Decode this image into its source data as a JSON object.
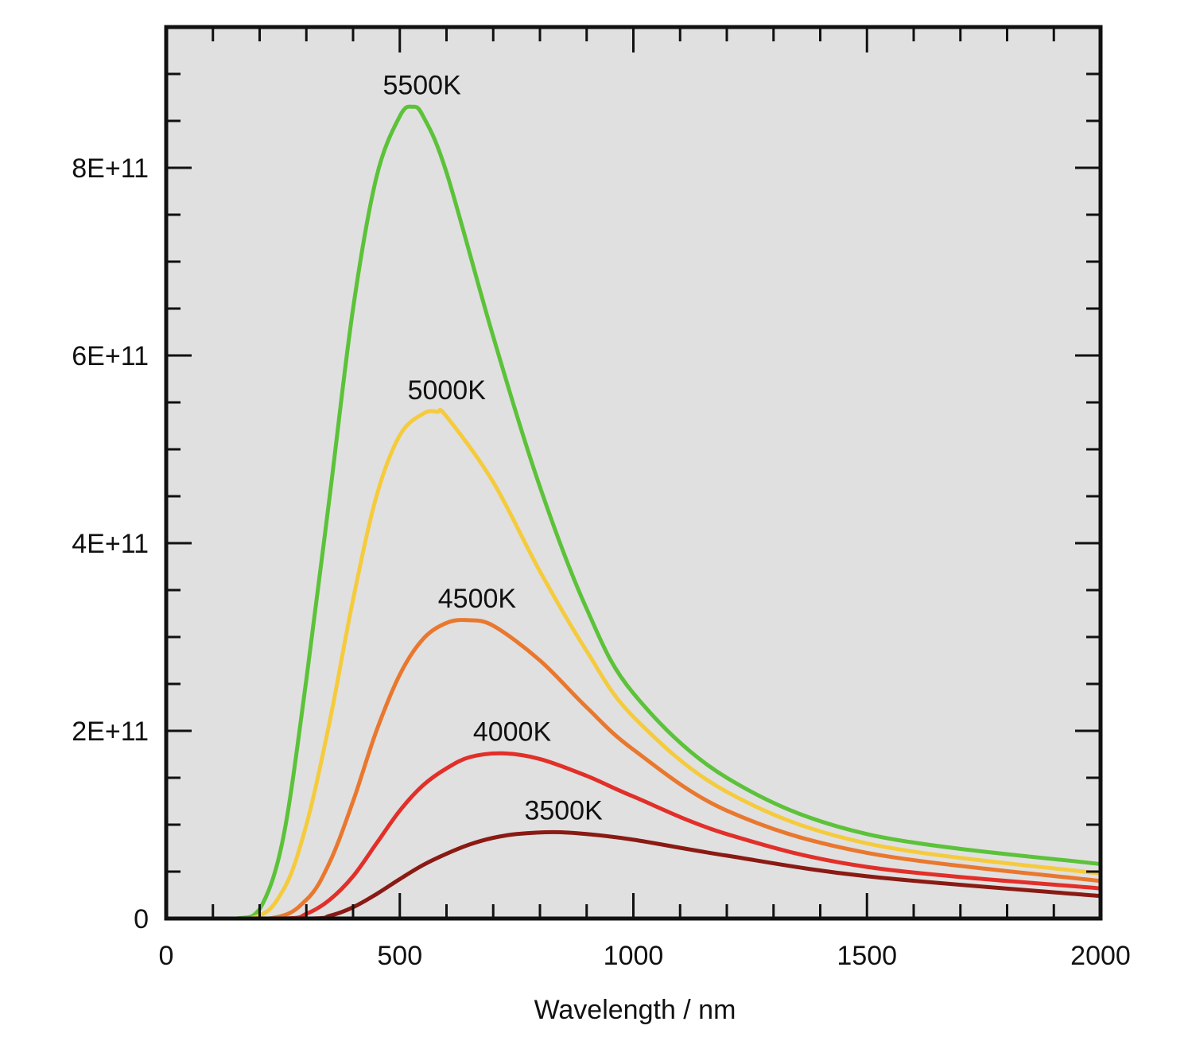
{
  "chart_data": {
    "type": "line",
    "title": "",
    "xlabel": "Wavelength / nm",
    "ylabel": "",
    "xlim": [
      0,
      2000
    ],
    "ylim": [
      0,
      950000000000.0
    ],
    "x_ticks": [
      0,
      500,
      1000,
      1500,
      2000
    ],
    "x_tick_labels": [
      "0",
      "500",
      "1000",
      "1500",
      "2000"
    ],
    "x_minor_step": 100,
    "y_ticks": [
      0,
      200000000000.0,
      400000000000.0,
      600000000000.0,
      800000000000.0
    ],
    "y_tick_labels": [
      "0",
      "2E+11",
      "4E+11",
      "6E+11",
      "8E+11"
    ],
    "y_minor_step": 50000000000.0,
    "grid": false,
    "background": "#e0e0e0",
    "legend": "none",
    "series": [
      {
        "name": "5500K",
        "color": "#5cc239",
        "x": [
          150,
          200,
          250,
          300,
          350,
          400,
          450,
          500,
          527,
          550,
          600,
          700,
          800,
          900,
          1000,
          1200,
          1500,
          2000
        ],
        "y": [
          0,
          10000000000.0,
          85000000000.0,
          255000000000.0,
          450000000000.0,
          650000000000.0,
          790000000000.0,
          855000000000.0,
          865000000000.0,
          855000000000.0,
          795000000000.0,
          620000000000.0,
          460000000000.0,
          330000000000.0,
          240000000000.0,
          150000000000.0,
          90000000000.0,
          58000000000.0
        ]
      },
      {
        "name": "5000K",
        "color": "#f5cb3e",
        "x": [
          180,
          250,
          300,
          350,
          400,
          450,
          500,
          550,
          580,
          600,
          700,
          800,
          900,
          1000,
          1200,
          1500,
          2000
        ],
        "y": [
          0,
          30000000000.0,
          100000000000.0,
          210000000000.0,
          340000000000.0,
          450000000000.0,
          515000000000.0,
          538000000000.0,
          540000000000.0,
          535000000000.0,
          465000000000.0,
          370000000000.0,
          285000000000.0,
          215000000000.0,
          135000000000.0,
          80000000000.0,
          48000000000.0
        ]
      },
      {
        "name": "4500K",
        "color": "#e9782f",
        "x": [
          220,
          300,
          350,
          400,
          450,
          500,
          550,
          600,
          645,
          700,
          800,
          900,
          1000,
          1200,
          1500,
          2000
        ],
        "y": [
          0,
          20000000000.0,
          60000000000.0,
          125000000000.0,
          200000000000.0,
          260000000000.0,
          298000000000.0,
          315000000000.0,
          318000000000.0,
          312000000000.0,
          275000000000.0,
          225000000000.0,
          180000000000.0,
          115000000000.0,
          70000000000.0,
          40000000000.0
        ]
      },
      {
        "name": "4000K",
        "color": "#e22f29",
        "x": [
          250,
          300,
          350,
          400,
          450,
          500,
          550,
          600,
          650,
          720,
          800,
          900,
          1000,
          1200,
          1500,
          2000
        ],
        "y": [
          0,
          5000000000.0,
          20000000000.0,
          45000000000.0,
          80000000000.0,
          115000000000.0,
          142000000000.0,
          160000000000.0,
          172000000000.0,
          176000000000.0,
          170000000000.0,
          152000000000.0,
          130000000000.0,
          90000000000.0,
          55000000000.0,
          32000000000.0
        ]
      },
      {
        "name": "3500K",
        "color": "#8a1a14",
        "x": [
          300,
          350,
          400,
          450,
          500,
          550,
          600,
          650,
          700,
          750,
          830,
          900,
          1000,
          1200,
          1500,
          2000
        ],
        "y": [
          0,
          3000000000.0,
          12000000000.0,
          26000000000.0,
          42000000000.0,
          57000000000.0,
          69000000000.0,
          79000000000.0,
          86000000000.0,
          90000000000.0,
          92000000000.0,
          90000000000.0,
          84000000000.0,
          67000000000.0,
          45000000000.0,
          24000000000.0
        ]
      }
    ]
  }
}
